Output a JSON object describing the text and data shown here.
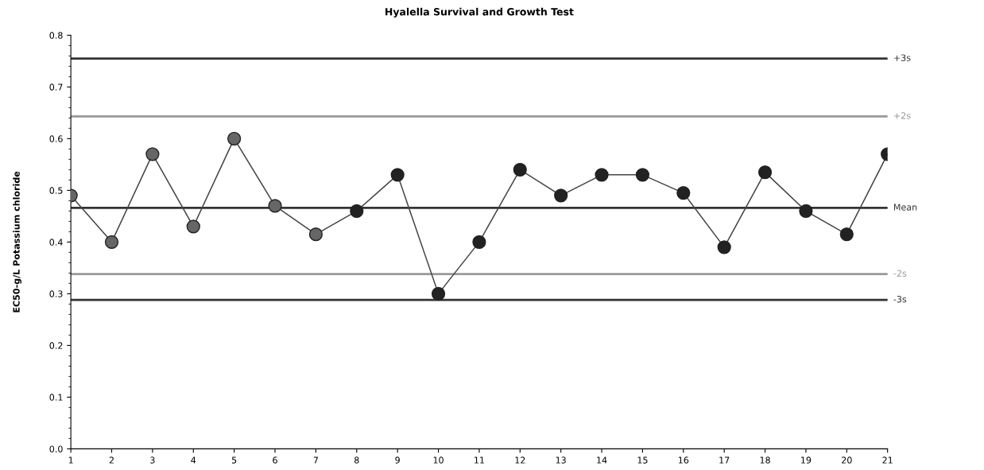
{
  "chart_data": {
    "type": "line",
    "title": "Hyalella Survival and Growth Test",
    "ylabel": "EC50-g/L Potassium chloride",
    "x": [
      1,
      2,
      3,
      4,
      5,
      6,
      7,
      8,
      9,
      10,
      11,
      12,
      13,
      14,
      15,
      16,
      17,
      18,
      19,
      20,
      21
    ],
    "series": [
      {
        "color": "#444444",
        "marker": "none",
        "values": [
          0.49,
          0.4,
          0.57,
          0.43,
          0.6,
          0.47,
          0.415,
          0.46,
          0.53,
          0.3,
          0.4,
          0.54,
          0.49,
          0.53,
          0.53,
          0.495,
          0.39,
          0.535,
          0.46,
          0.415,
          0.57
        ]
      },
      {
        "type": "scatter",
        "color": "#666666",
        "marker": "circle",
        "values": [
          0.49,
          0.4,
          0.57,
          0.43,
          0.6,
          0.47,
          0.415,
          null,
          null,
          null,
          null,
          null,
          null,
          null,
          null,
          null,
          null,
          null,
          null,
          null,
          null
        ]
      },
      {
        "type": "scatter",
        "color": "#222222",
        "marker": "circle",
        "values": [
          null,
          null,
          null,
          null,
          null,
          null,
          null,
          0.46,
          0.53,
          0.3,
          0.4,
          0.54,
          0.49,
          0.53,
          0.53,
          0.495,
          0.39,
          0.535,
          0.46,
          0.415,
          0.57
        ]
      }
    ],
    "xlim": [
      1,
      21
    ],
    "xticks": [
      1,
      2,
      3,
      4,
      5,
      6,
      7,
      8,
      9,
      10,
      11,
      12,
      13,
      14,
      15,
      16,
      17,
      18,
      19,
      20,
      21
    ],
    "ylim": [
      0.0,
      0.8
    ],
    "yticks": [
      {
        "value": 0.0,
        "label": "0.0"
      },
      0.1,
      0.2,
      0.3,
      0.4,
      0.5,
      0.6,
      0.7,
      0.8
    ],
    "ref_lines": [
      {
        "axis": "y",
        "value": 0.755,
        "label": "+3s",
        "color": "#333333"
      },
      {
        "axis": "y",
        "value": 0.643,
        "label": "+2s",
        "color": "#999999"
      },
      {
        "axis": "y",
        "value": 0.466,
        "label": "Mean",
        "color": "#333333"
      },
      {
        "axis": "y",
        "value": 0.338,
        "label": "-2s",
        "color": "#999999"
      },
      {
        "axis": "y",
        "value": 0.288,
        "label": "-3s",
        "color": "#333333"
      }
    ],
    "grid": false,
    "legend": false
  }
}
